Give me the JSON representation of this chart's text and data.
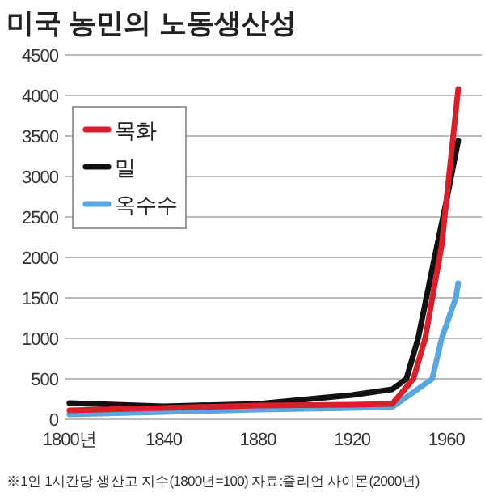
{
  "chart_data": {
    "type": "line",
    "title": "미국 농민의 노동생산성",
    "series": [
      {
        "name": "목화",
        "color": "#d9202a",
        "x": [
          1800,
          1840,
          1880,
          1920,
          1937,
          1946,
          1951,
          1958,
          1965
        ],
        "values": [
          110,
          140,
          170,
          180,
          190,
          500,
          1000,
          2150,
          4080
        ]
      },
      {
        "name": "밀",
        "color": "#111111",
        "x": [
          1800,
          1840,
          1880,
          1920,
          1937,
          1943,
          1948,
          1955,
          1960,
          1965
        ],
        "values": [
          200,
          160,
          190,
          300,
          370,
          500,
          1000,
          2000,
          2700,
          3440
        ]
      },
      {
        "name": "옥수수",
        "color": "#5aa6e0",
        "x": [
          1800,
          1840,
          1880,
          1920,
          1937,
          1954,
          1958,
          1964,
          1965
        ],
        "values": [
          60,
          90,
          120,
          140,
          150,
          500,
          1000,
          1500,
          1680
        ]
      }
    ],
    "xlim": [
      1798,
      1975
    ],
    "xticks": [
      {
        "value": 1800,
        "label": "1800년"
      },
      1840,
      1880,
      1920,
      1960
    ],
    "ylim": [
      0,
      4500
    ],
    "yticks": [
      0,
      500,
      1000,
      1500,
      2000,
      2500,
      3000,
      3500,
      4000,
      4500
    ],
    "grid": "y",
    "legend": "top left",
    "annotations": [
      "※1인 1시간당 생산고 지수(1800년=100)  자료:줄리언 사이몬(2000년)"
    ]
  }
}
